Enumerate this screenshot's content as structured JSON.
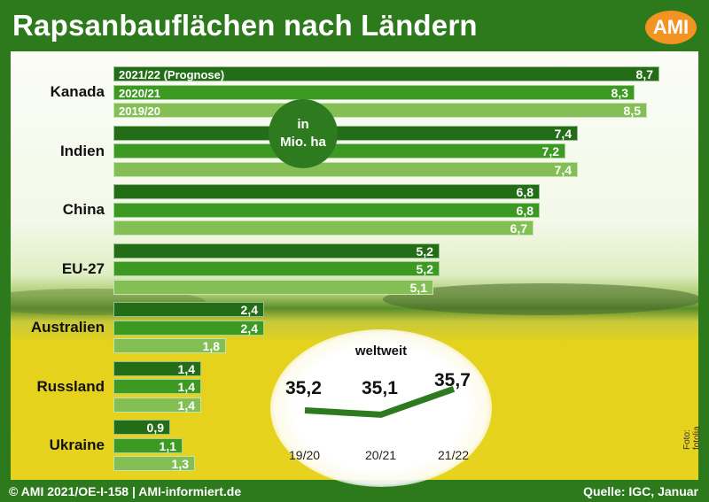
{
  "header": {
    "title": "Rapsanbauflächen nach Ländern",
    "logo": "AMI"
  },
  "unit_badge": {
    "line1": "in",
    "line2": "Mio. ha"
  },
  "footer": {
    "left": "© AMI 2021/OE-I-158 | AMI-informiert.de",
    "right": "Quelle: IGC, Januar"
  },
  "photo_credit": "Foto: fotolia",
  "colors": {
    "2021/22": "#226d16",
    "2020/21": "#3c9a22",
    "2019/20": "#84bf55",
    "frame": "#2c7a1c",
    "logo": "#f39322"
  },
  "chart_data": [
    {
      "type": "bar",
      "orientation": "horizontal",
      "title": "Rapsanbauflächen nach Ländern",
      "unit": "Mio. ha",
      "categories": [
        "Kanada",
        "Indien",
        "China",
        "EU-27",
        "Australien",
        "Russland",
        "Ukraine"
      ],
      "series": [
        {
          "name": "2021/22 (Prognose)",
          "values": [
            8.7,
            7.4,
            6.8,
            5.2,
            2.4,
            1.4,
            0.9
          ],
          "labels": [
            "8,7",
            "7,4",
            "6,8",
            "5,2",
            "2,4",
            "1,4",
            "0,9"
          ]
        },
        {
          "name": "2020/21",
          "values": [
            8.3,
            7.2,
            6.8,
            5.2,
            2.4,
            1.4,
            1.1
          ],
          "labels": [
            "8,3",
            "7,2",
            "6,8",
            "5,2",
            "2,4",
            "1,4",
            "1,1"
          ]
        },
        {
          "name": "2019/20",
          "values": [
            8.5,
            7.4,
            6.7,
            5.1,
            1.8,
            1.4,
            1.3
          ],
          "labels": [
            "8,5",
            "7,4",
            "6,7",
            "5,1",
            "1,8",
            "1,4",
            "1,3"
          ]
        }
      ],
      "xlim": [
        0,
        9.2
      ]
    },
    {
      "type": "line",
      "title": "weltweit",
      "x": [
        "19/20",
        "20/21",
        "21/22"
      ],
      "y": [
        35.2,
        35.1,
        35.7
      ],
      "labels": [
        "35,2",
        "35,1",
        "35,7"
      ]
    }
  ]
}
